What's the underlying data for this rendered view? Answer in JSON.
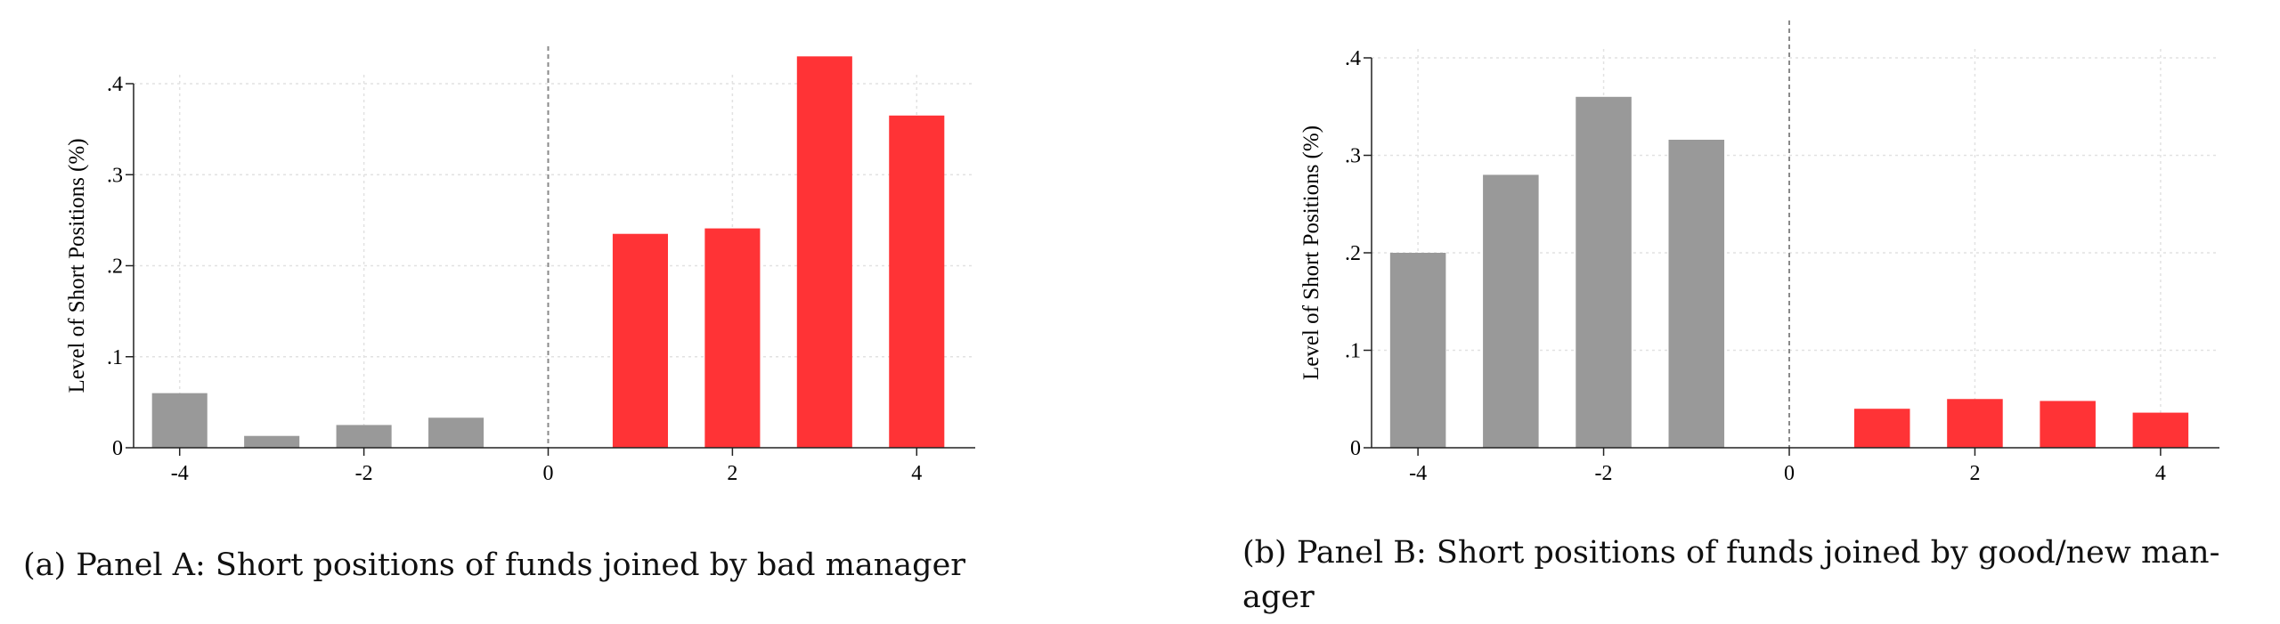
{
  "chart_data": [
    {
      "type": "bar",
      "ylabel": "Level of Short Positions (%)",
      "xlabel": "",
      "x": [
        -4,
        -3,
        -2,
        -1,
        1,
        2,
        3,
        4
      ],
      "values": [
        0.06,
        0.013,
        0.025,
        0.033,
        0.235,
        0.241,
        0.43,
        0.365
      ],
      "pre_color": "#999999",
      "post_color": "#ff3336",
      "xlim": [
        -4.5,
        4.5
      ],
      "ylim": [
        0,
        0.4
      ],
      "xticks": [
        "-4",
        "-2",
        "0",
        "2",
        "4"
      ],
      "yticks": [
        "0",
        ".1",
        ".2",
        ".3",
        ".4"
      ],
      "vline_x": 0,
      "grid": true,
      "caption": "(a) Panel A: Short positions of funds joined by bad manager"
    },
    {
      "type": "bar",
      "ylabel": "Level of Short Positions (%)",
      "xlabel": "",
      "x": [
        -4,
        -3,
        -2,
        -1,
        1,
        2,
        3,
        4
      ],
      "values": [
        0.2,
        0.28,
        0.36,
        0.316,
        0.04,
        0.05,
        0.048,
        0.036
      ],
      "pre_color": "#999999",
      "post_color": "#ff3336",
      "xlim": [
        -4.5,
        4.5
      ],
      "ylim": [
        0,
        0.4
      ],
      "xticks": [
        "-4",
        "-2",
        "0",
        "2",
        "4"
      ],
      "yticks": [
        "0",
        ".1",
        ".2",
        ".3",
        ".4"
      ],
      "vline_x": 0,
      "grid": true,
      "caption_lines": [
        "(b) Panel B: Short positions of funds joined by good/new man-",
        "ager"
      ]
    }
  ]
}
